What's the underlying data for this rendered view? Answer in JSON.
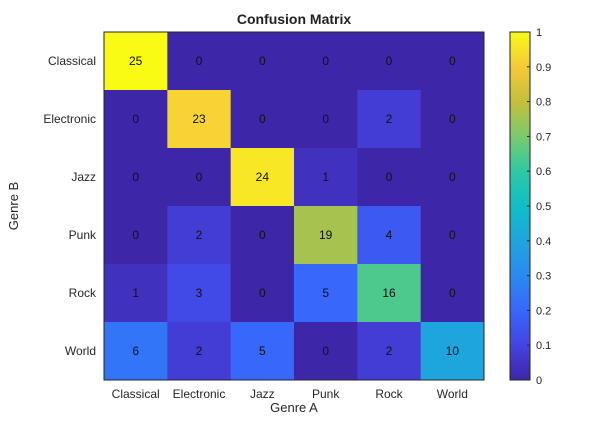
{
  "chart_data": {
    "type": "heatmap",
    "title": "Confusion Matrix",
    "xlabel": "Genre A",
    "ylabel": "Genre B",
    "x_categories": [
      "Classical",
      "Electronic",
      "Jazz",
      "Punk",
      "Rock",
      "World"
    ],
    "y_categories": [
      "Classical",
      "Electronic",
      "Jazz",
      "Punk",
      "Rock",
      "World"
    ],
    "values": [
      [
        25,
        0,
        0,
        0,
        0,
        0
      ],
      [
        0,
        23,
        0,
        0,
        2,
        0
      ],
      [
        0,
        0,
        24,
        1,
        0,
        0
      ],
      [
        0,
        2,
        0,
        19,
        4,
        0
      ],
      [
        1,
        3,
        0,
        5,
        16,
        0
      ],
      [
        6,
        2,
        5,
        0,
        2,
        10
      ]
    ],
    "row_totals": [
      25,
      25,
      25,
      25,
      25,
      25
    ],
    "colormap": "parula",
    "colorbar": {
      "range": [
        0,
        1
      ],
      "ticks": [
        "0",
        "0.1",
        "0.2",
        "0.3",
        "0.4",
        "0.5",
        "0.6",
        "0.7",
        "0.8",
        "0.9",
        "1"
      ]
    },
    "grid": false,
    "legend": "colorbar-right"
  }
}
